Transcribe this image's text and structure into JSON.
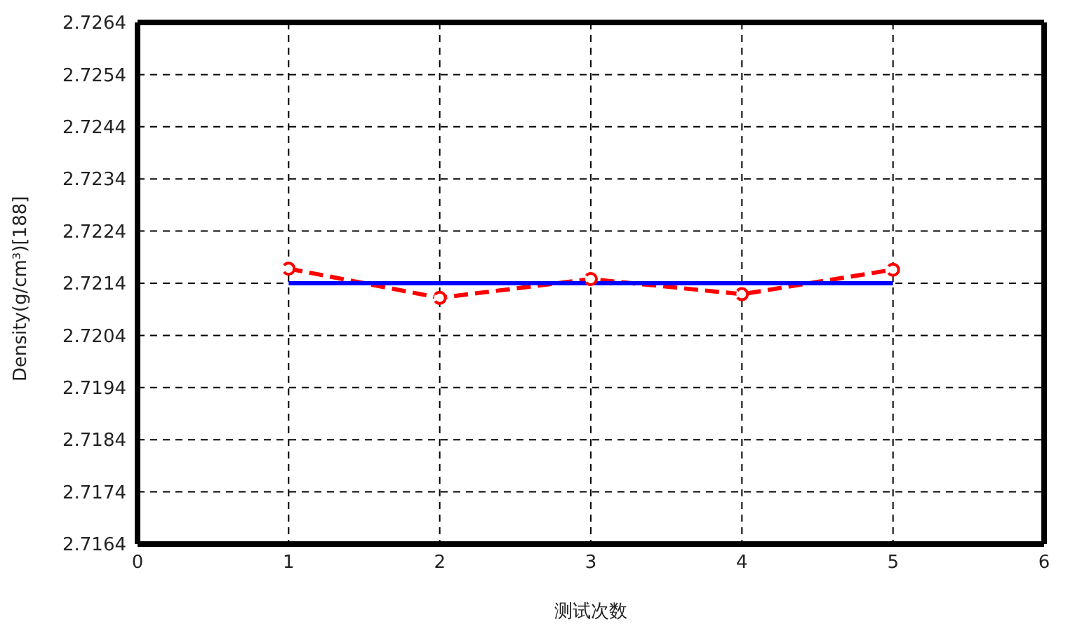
{
  "chart_data": {
    "type": "line",
    "xlabel": "测试次数",
    "ylabel": "Density(g/cm³)[188]",
    "x": [
      1,
      2,
      3,
      4,
      5
    ],
    "series": [
      {
        "color": "#ff0000",
        "values": [
          2.72168,
          2.72112,
          2.72148,
          2.72119,
          2.72166
        ],
        "marker": "circle",
        "line_style": "dashed"
      },
      {
        "color": "#0000ff",
        "values": [
          2.7214,
          2.7214,
          2.7214,
          2.7214,
          2.7214
        ],
        "marker": "none",
        "line_style": "solid"
      }
    ],
    "xlim": [
      0,
      6
    ],
    "xticks": [
      0,
      1,
      2,
      3,
      4,
      5,
      6
    ],
    "ylim": [
      2.7164,
      2.7264
    ],
    "yticks": [
      2.7164,
      2.7174,
      2.7184,
      2.7194,
      2.7204,
      2.7214,
      2.7224,
      2.7234,
      2.7244,
      2.7254,
      2.7264
    ],
    "grid": true,
    "legend": false
  }
}
